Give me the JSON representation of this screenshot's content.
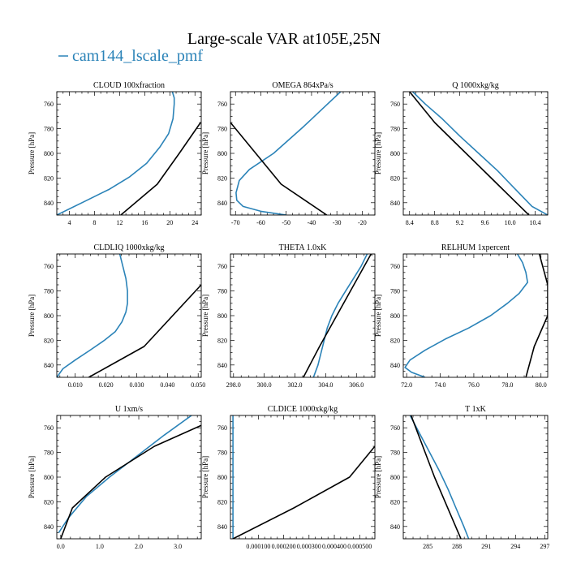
{
  "title": "Large-scale VAR at105E,25N",
  "legend": "cam144_lscale_pmf",
  "colors": {
    "model": "#2b83b8",
    "obs": "#000000"
  },
  "chart_data": [
    {
      "type": "line",
      "title": "CLOUD  100xfraction",
      "ylabel": "Pressure [hPa]",
      "xlim": [
        2,
        25
      ],
      "ylim": [
        850,
        750
      ],
      "xticks": [
        "4",
        "8",
        "12",
        "16",
        "20",
        "24"
      ],
      "xtickvals": [
        4,
        8,
        12,
        16,
        20,
        24
      ],
      "yticks": [
        "760",
        "780",
        "800",
        "820",
        "840"
      ],
      "ytickvals": [
        760,
        780,
        800,
        820,
        840
      ],
      "series": [
        {
          "name": "cam144_lscale_pmf",
          "color": "#2b83b8",
          "x": [
            20.4,
            20.7,
            20.7,
            20.5,
            19.8,
            18.4,
            16.3,
            13.6,
            10.4,
            6.4,
            2.0
          ],
          "y": [
            750,
            755,
            760,
            772,
            784,
            795,
            808,
            819,
            829,
            839,
            850
          ]
        },
        {
          "x": [
            12.2,
            18.0,
            21.5,
            24.9
          ],
          "y": [
            850,
            825,
            800,
            775
          ]
        }
      ]
    },
    {
      "type": "line",
      "title": "OMEGA  864xPa/s",
      "ylabel": "Pressure [hPa]",
      "xlim": [
        -72,
        -15
      ],
      "ylim": [
        850,
        750
      ],
      "xticks": [
        "-70",
        "-60",
        "-50",
        "-40",
        "-30",
        "-20"
      ],
      "xtickvals": [
        -70,
        -60,
        -50,
        -40,
        -30,
        -20
      ],
      "yticks": [
        "760",
        "780",
        "800",
        "820",
        "840"
      ],
      "ytickvals": [
        760,
        780,
        800,
        820,
        840
      ],
      "series": [
        {
          "name": "cam144_lscale_pmf",
          "color": "#2b83b8",
          "x": [
            -28.5,
            -43.0,
            -55.0,
            -64.5,
            -68.5,
            -69.8,
            -69.5,
            -67.0,
            -60.0,
            -50.0
          ],
          "y": [
            750,
            778,
            800,
            813,
            822,
            832,
            838,
            843,
            847,
            850
          ]
        },
        {
          "x": [
            -72,
            -52,
            -34
          ],
          "y": [
            775,
            825,
            850
          ]
        }
      ]
    },
    {
      "type": "line",
      "title": "Q  1000xkg/kg",
      "ylabel": "Pressure [hPa]",
      "xlim": [
        8.3,
        10.6
      ],
      "ylim": [
        850,
        750
      ],
      "xticks": [
        "8.4",
        "8.8",
        "9.2",
        "9.6",
        "10.0",
        "10.4"
      ],
      "xtickvals": [
        8.4,
        8.8,
        9.2,
        9.6,
        10.0,
        10.4
      ],
      "yticks": [
        "760",
        "780",
        "800",
        "820",
        "840"
      ],
      "ytickvals": [
        760,
        780,
        800,
        820,
        840
      ],
      "series": [
        {
          "name": "cam144_lscale_pmf",
          "color": "#2b83b8",
          "x": [
            8.45,
            8.65,
            8.92,
            9.2,
            9.5,
            9.8,
            10.12,
            10.35,
            10.6
          ],
          "y": [
            750,
            760,
            772,
            786,
            800,
            814,
            831,
            843,
            850
          ]
        },
        {
          "x": [
            8.4,
            8.8,
            9.3,
            9.8,
            10.3
          ],
          "y": [
            750,
            775,
            800,
            825,
            850
          ]
        }
      ]
    },
    {
      "type": "line",
      "title": "CLDLIQ  1000xkg/kg",
      "ylabel": "Pressure [hPa]",
      "xlim": [
        0.004,
        0.051
      ],
      "ylim": [
        850,
        750
      ],
      "xticks": [
        "0.010",
        "0.020",
        "0.030",
        "0.040",
        "0.050"
      ],
      "xtickvals": [
        0.01,
        0.02,
        0.03,
        0.04,
        0.05
      ],
      "yticks": [
        "760",
        "780",
        "800",
        "820",
        "840"
      ],
      "ytickvals": [
        760,
        780,
        800,
        820,
        840
      ],
      "series": [
        {
          "name": "cam144_lscale_pmf",
          "color": "#2b83b8",
          "x": [
            0.0245,
            0.0255,
            0.0265,
            0.027,
            0.027,
            0.0265,
            0.0252,
            0.023,
            0.0195,
            0.0148,
            0.01,
            0.006,
            0.004
          ],
          "y": [
            750,
            760,
            770,
            780,
            790,
            797,
            805,
            813,
            820,
            828,
            836,
            843,
            850
          ]
        },
        {
          "x": [
            0.0144,
            0.0324,
            0.051
          ],
          "y": [
            850,
            825,
            775
          ]
        }
      ]
    },
    {
      "type": "line",
      "title": "THETA  1.0xK",
      "ylabel": "Pressure [hPa]",
      "xlim": [
        297.8,
        307.2
      ],
      "ylim": [
        850,
        750
      ],
      "xticks": [
        "298.0",
        "300.0",
        "302.0",
        "304.0",
        "306.0"
      ],
      "xtickvals": [
        298,
        300,
        302,
        304,
        306
      ],
      "yticks": [
        "760",
        "780",
        "800",
        "820",
        "840"
      ],
      "ytickvals": [
        760,
        780,
        800,
        820,
        840
      ],
      "series": [
        {
          "name": "cam144_lscale_pmf",
          "color": "#2b83b8",
          "x": [
            306.7,
            306.3,
            305.8,
            305.3,
            304.8,
            304.4,
            304.1,
            303.9,
            303.7,
            303.5,
            303.2
          ],
          "y": [
            750,
            760,
            770,
            780,
            790,
            800,
            810,
            820,
            830,
            840,
            850
          ]
        },
        {
          "x": [
            306.95,
            303.6,
            302.55
          ],
          "y": [
            750,
            825,
            850
          ]
        }
      ]
    },
    {
      "type": "line",
      "title": "RELHUM  1xpercent",
      "ylabel": "Pressure [hPa]",
      "xlim": [
        71.8,
        80.4
      ],
      "ylim": [
        850,
        750
      ],
      "xticks": [
        "72.0",
        "74.0",
        "76.0",
        "78.0",
        "80.0"
      ],
      "xtickvals": [
        72,
        74,
        76,
        78,
        80
      ],
      "yticks": [
        "760",
        "780",
        "800",
        "820",
        "840"
      ],
      "ytickvals": [
        760,
        780,
        800,
        820,
        840
      ],
      "series": [
        {
          "name": "cam144_lscale_pmf",
          "color": "#2b83b8",
          "x": [
            78.6,
            78.9,
            79.1,
            79.2,
            78.7,
            78.0,
            77.0,
            75.7,
            74.3,
            73.1,
            72.2,
            71.9,
            72.3,
            73.1
          ],
          "y": [
            750,
            757,
            765,
            773,
            782,
            790,
            800,
            810,
            819,
            828,
            836,
            842,
            846,
            850
          ]
        },
        {
          "x": [
            79.9,
            80.4,
            80.4,
            79.6,
            79.1
          ],
          "y": [
            750,
            775,
            800,
            825,
            850
          ]
        }
      ]
    },
    {
      "type": "line",
      "title": "U  1xm/s",
      "ylabel": "Pressure [hPa]",
      "xlim": [
        -0.1,
        3.6
      ],
      "ylim": [
        850,
        750
      ],
      "xticks": [
        "0.0",
        "1.0",
        "2.0",
        "3.0"
      ],
      "xtickvals": [
        0,
        1,
        2,
        3
      ],
      "yticks": [
        "760",
        "780",
        "800",
        "820",
        "840"
      ],
      "ytickvals": [
        760,
        780,
        800,
        820,
        840
      ],
      "series": [
        {
          "name": "cam144_lscale_pmf",
          "color": "#2b83b8",
          "x": [
            3.35,
            2.65,
            1.95,
            1.25,
            0.65,
            0.2,
            -0.05
          ],
          "y": [
            750,
            766,
            783,
            800,
            816,
            833,
            845
          ]
        },
        {
          "x": [
            3.6,
            2.4,
            1.15,
            0.3,
            0.0
          ],
          "y": [
            758,
            775,
            800,
            825,
            850
          ]
        }
      ]
    },
    {
      "type": "line",
      "title": "CLDICE  1000xkg/kg",
      "ylabel": "Pressure [hPa]",
      "xlim": [
        -1e-05,
        0.00056
      ],
      "ylim": [
        850,
        750
      ],
      "xticks": [
        "0.000100",
        "0.000200",
        "0.000300",
        "0.000400",
        "0.000500"
      ],
      "xtickvals": [
        0.0001,
        0.0002,
        0.0003,
        0.0004,
        0.0005
      ],
      "yticks": [
        "760",
        "780",
        "800",
        "820",
        "840"
      ],
      "ytickvals": [
        760,
        780,
        800,
        820,
        840
      ],
      "series": [
        {
          "name": "cam144_lscale_pmf",
          "color": "#2b83b8",
          "x": [
            0.0,
            0.0,
            0.0
          ],
          "y": [
            750,
            800,
            850
          ]
        },
        {
          "x": [
            0.0,
            0.00024,
            0.00046,
            0.00056
          ],
          "y": [
            850,
            825,
            800,
            775
          ]
        }
      ]
    },
    {
      "type": "line",
      "title": "T  1xK",
      "ylabel": "Pressure [hPa]",
      "xlim": [
        282.5,
        297.3
      ],
      "ylim": [
        850,
        750
      ],
      "xticks": [
        "285",
        "288",
        "291",
        "294",
        "297"
      ],
      "xtickvals": [
        285,
        288,
        291,
        294,
        297
      ],
      "yticks": [
        "760",
        "780",
        "800",
        "820",
        "840"
      ],
      "ytickvals": [
        760,
        780,
        800,
        820,
        840
      ],
      "series": [
        {
          "name": "cam144_lscale_pmf",
          "color": "#2b83b8",
          "x": [
            283.2,
            284.2,
            285.2,
            286.2,
            287.1,
            287.9,
            288.7,
            289.2
          ],
          "y": [
            750,
            765,
            780,
            795,
            810,
            825,
            840,
            850
          ]
        },
        {
          "x": [
            283.3,
            285.7,
            288.4
          ],
          "y": [
            750,
            800,
            850
          ]
        }
      ]
    }
  ]
}
